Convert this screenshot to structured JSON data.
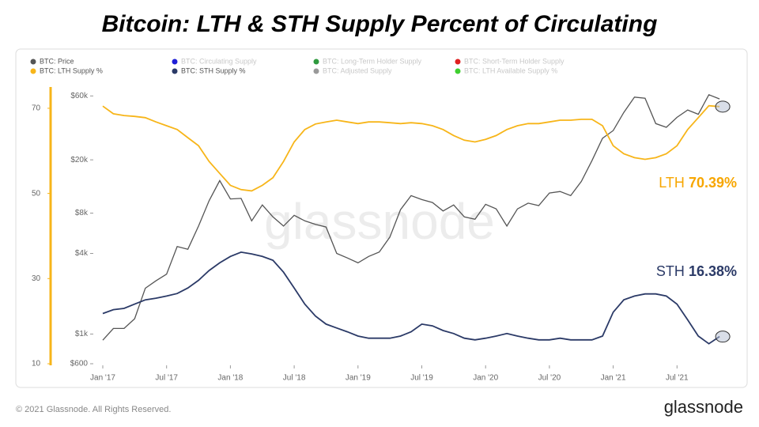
{
  "title": "Bitcoin: LTH & STH Supply Percent of Circulating",
  "footer": {
    "copyright": "© 2021 Glassnode. All Rights Reserved.",
    "logo": "glassnode"
  },
  "chart_data": {
    "type": "line",
    "watermark": "glassnode",
    "x": [
      "2017-01",
      "2017-02",
      "2017-03",
      "2017-04",
      "2017-05",
      "2017-06",
      "2017-07",
      "2017-08",
      "2017-09",
      "2017-10",
      "2017-11",
      "2017-12",
      "2018-01",
      "2018-02",
      "2018-03",
      "2018-04",
      "2018-05",
      "2018-06",
      "2018-07",
      "2018-08",
      "2018-09",
      "2018-10",
      "2018-11",
      "2018-12",
      "2019-01",
      "2019-02",
      "2019-03",
      "2019-04",
      "2019-05",
      "2019-06",
      "2019-07",
      "2019-08",
      "2019-09",
      "2019-10",
      "2019-11",
      "2019-12",
      "2020-01",
      "2020-02",
      "2020-03",
      "2020-04",
      "2020-05",
      "2020-06",
      "2020-07",
      "2020-08",
      "2020-09",
      "2020-10",
      "2020-11",
      "2020-12",
      "2021-01",
      "2021-02",
      "2021-03",
      "2021-04",
      "2021-05",
      "2021-06",
      "2021-07",
      "2021-08",
      "2021-09",
      "2021-10",
      "2021-11"
    ],
    "xticks": [
      {
        "value": "2017-01",
        "label": "Jan '17"
      },
      {
        "value": "2017-07",
        "label": "Jul '17"
      },
      {
        "value": "2018-01",
        "label": "Jan '18"
      },
      {
        "value": "2018-07",
        "label": "Jul '18"
      },
      {
        "value": "2019-01",
        "label": "Jan '19"
      },
      {
        "value": "2019-07",
        "label": "Jul '19"
      },
      {
        "value": "2020-01",
        "label": "Jan '20"
      },
      {
        "value": "2020-07",
        "label": "Jul '20"
      },
      {
        "value": "2021-01",
        "label": "Jan '21"
      },
      {
        "value": "2021-07",
        "label": "Jul '21"
      }
    ],
    "ylim": [
      10,
      75
    ],
    "yticks": [
      10,
      30,
      50,
      70
    ],
    "y2lim": [
      600,
      70000
    ],
    "y2_log": true,
    "y2ticks": [
      {
        "value": 600,
        "label": "$600"
      },
      {
        "value": 1000,
        "label": "$1k"
      },
      {
        "value": 4000,
        "label": "$4k"
      },
      {
        "value": 8000,
        "label": "$8k"
      },
      {
        "value": 20000,
        "label": "$20k"
      },
      {
        "value": 60000,
        "label": "$60k"
      }
    ],
    "series": [
      {
        "name": "BTC: Price",
        "color": "#555555",
        "axis": "y2",
        "values": [
          900,
          1100,
          1100,
          1300,
          2200,
          2500,
          2800,
          4500,
          4300,
          6400,
          9900,
          14000,
          10200,
          10300,
          7000,
          9200,
          7500,
          6400,
          7700,
          7000,
          6600,
          6300,
          4000,
          3700,
          3400,
          3800,
          4100,
          5300,
          8500,
          10800,
          10100,
          9600,
          8300,
          9200,
          7500,
          7200,
          9300,
          8600,
          6400,
          8600,
          9500,
          9100,
          11300,
          11600,
          10800,
          13800,
          19700,
          29000,
          33100,
          45200,
          58800,
          57700,
          37300,
          35000,
          41500,
          47100,
          43800,
          61300,
          57000
        ]
      },
      {
        "name": "BTC: LTH Supply %",
        "color": "#f7b519",
        "values": [
          70.5,
          68.7,
          68.3,
          68.1,
          67.8,
          66.8,
          65.9,
          65.0,
          63.1,
          61.2,
          57.5,
          54.7,
          51.9,
          50.9,
          50.6,
          51.9,
          53.7,
          57.5,
          62.1,
          65.0,
          66.3,
          66.8,
          67.2,
          66.8,
          66.4,
          66.8,
          66.8,
          66.6,
          66.4,
          66.6,
          66.4,
          65.9,
          65.0,
          63.6,
          62.5,
          62.1,
          62.7,
          63.6,
          65.0,
          65.9,
          66.4,
          66.4,
          66.8,
          67.2,
          67.2,
          67.4,
          67.4,
          65.9,
          61.2,
          59.3,
          58.4,
          58.0,
          58.4,
          59.3,
          61.2,
          65.0,
          67.8,
          70.6,
          70.39
        ]
      },
      {
        "name": "BTC: STH Supply %",
        "color": "#2b3a67",
        "values": [
          21.8,
          22.7,
          23.0,
          24.0,
          25.0,
          25.4,
          25.9,
          26.5,
          27.8,
          29.6,
          31.9,
          33.7,
          35.2,
          36.2,
          35.8,
          35.2,
          34.3,
          31.5,
          27.8,
          24.0,
          21.2,
          19.3,
          18.4,
          17.5,
          16.5,
          16.0,
          16.0,
          16.0,
          16.5,
          17.5,
          19.3,
          18.9,
          17.8,
          17.1,
          16.0,
          15.6,
          16.0,
          16.5,
          17.1,
          16.5,
          16.0,
          15.6,
          15.6,
          16.0,
          15.6,
          15.6,
          15.6,
          16.5,
          22.1,
          25.0,
          25.9,
          26.4,
          26.4,
          25.9,
          24.0,
          20.3,
          16.5,
          14.7,
          16.38
        ]
      }
    ],
    "inactive_series": [
      {
        "name": "BTC: Circulating Supply",
        "color": "#1f1fd6"
      },
      {
        "name": "BTC: Long-Term Holder Supply",
        "color": "#2e9a3e"
      },
      {
        "name": "BTC: Short-Term Holder Supply",
        "color": "#e02020"
      },
      {
        "name": "BTC: Adjusted Supply",
        "color": "#999999"
      },
      {
        "name": "BTC: LTH Available Supply %",
        "color": "#3fcf2f"
      }
    ],
    "annotations": [
      {
        "text": "LTH",
        "value": 70.39,
        "label": "70.39%",
        "color": "#f7a600"
      },
      {
        "text": "STH",
        "value": 16.38,
        "label": "16.38%",
        "color": "#2b3a67"
      }
    ]
  }
}
